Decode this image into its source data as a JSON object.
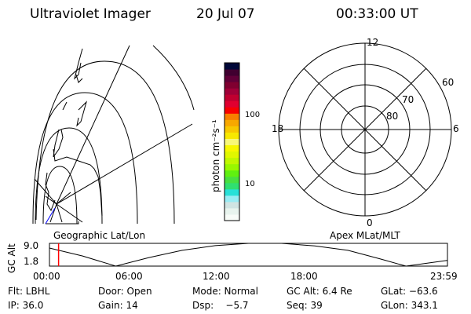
{
  "header": {
    "instrument": "Ultraviolet Imager",
    "date": "20 Jul 07",
    "time": "00:33:00 UT"
  },
  "colorbar": {
    "label": "photon cm⁻²s⁻¹",
    "ticks": [
      "100",
      "10"
    ],
    "colors": [
      "#f8fcf8",
      "#e8f4ee",
      "#d0e4e2",
      "#98ecf4",
      "#28e0d8",
      "#30e070",
      "#48e040",
      "#60f010",
      "#98f800",
      "#c0f800",
      "#e0f800",
      "#f8f800",
      "#f8f878",
      "#f8e800",
      "#f8c800",
      "#f8a800",
      "#f88000",
      "#f80000",
      "#e00030",
      "#c00030",
      "#a00038",
      "#800030",
      "#600038",
      "#400030",
      "#000838"
    ]
  },
  "left_panel": {
    "label": "Geographic Lat/Lon"
  },
  "right_panel": {
    "label": "Apex MLat/MLT",
    "mlt_labels": [
      "12",
      "6",
      "0",
      "18"
    ],
    "mlat_labels": [
      "60",
      "70",
      "80"
    ]
  },
  "timeline": {
    "ylabel": "GC Alt",
    "yticks": [
      "9.0",
      "1.8"
    ],
    "xticks": [
      "00:00",
      "06:00",
      "12:00",
      "18:00",
      "23:59"
    ],
    "marker_color": "#ff0000"
  },
  "chart_data": {
    "type": "line",
    "ylabel": "GC Alt",
    "ylim": [
      1.8,
      9.0
    ],
    "xlim": [
      "00:00",
      "23:59"
    ],
    "x": [
      0,
      2,
      4,
      6,
      8,
      10,
      12,
      14,
      16,
      18,
      20,
      21.5,
      23.98
    ],
    "values": [
      7.5,
      5.0,
      1.8,
      4.5,
      6.8,
      8.3,
      9.0,
      9.0,
      8.2,
      6.8,
      4.0,
      1.8,
      3.6
    ],
    "current_time": "00:33"
  },
  "status": {
    "row1": [
      "Flt: LBHL",
      "Door: Open",
      "Mode: Normal",
      "GC Alt: 6.4 Re",
      "GLat: −63.6"
    ],
    "row2": [
      "IP: 36.0",
      "Gain: 14",
      "Dsp:    −5.7",
      "Seq: 39",
      "GLon: 343.1"
    ]
  }
}
